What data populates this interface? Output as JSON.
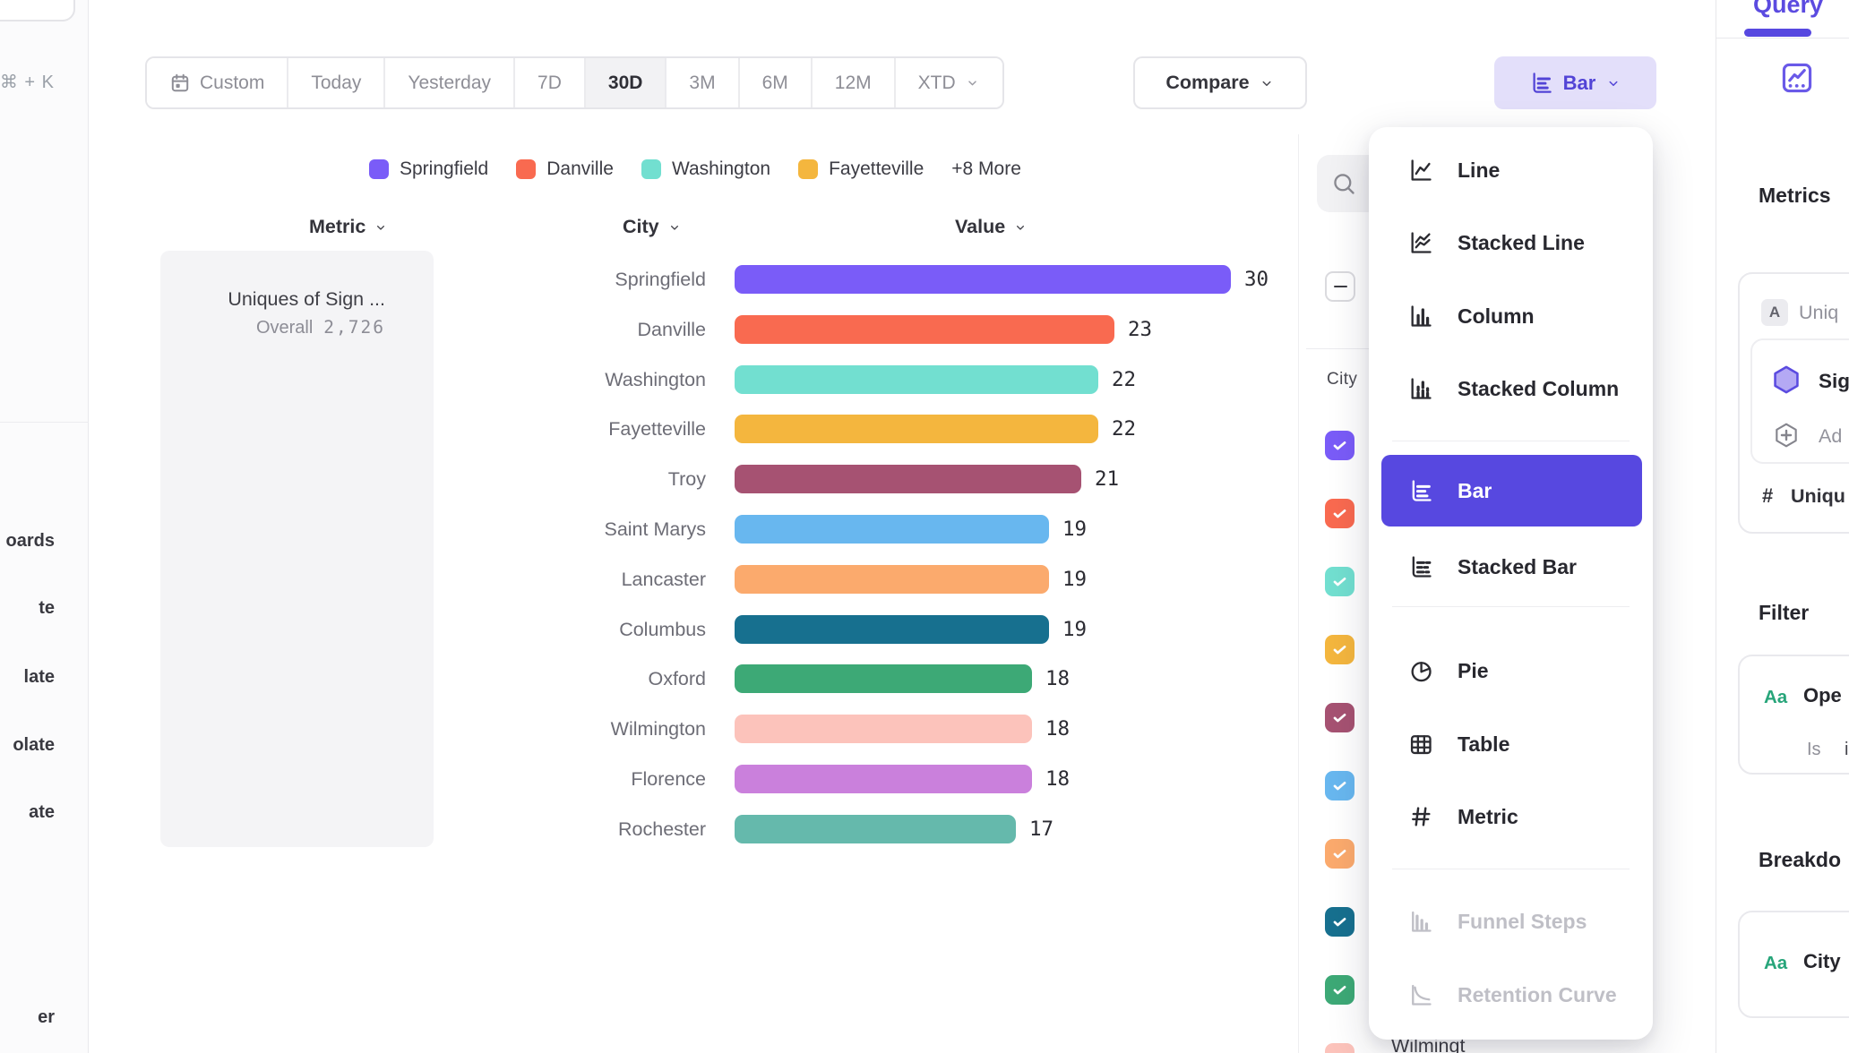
{
  "sidebar": {
    "shortcut": "⌘ + K",
    "items": [
      "oards",
      "te",
      "late",
      "olate",
      "ate",
      "er"
    ]
  },
  "toolbar": {
    "date_buttons": [
      {
        "label": "Custom",
        "icon": "calendar",
        "selected": false
      },
      {
        "label": "Today"
      },
      {
        "label": "Yesterday"
      },
      {
        "label": "7D"
      },
      {
        "label": "30D",
        "selected": true
      },
      {
        "label": "3M"
      },
      {
        "label": "6M"
      },
      {
        "label": "12M"
      },
      {
        "label": "XTD",
        "chevron": true
      }
    ],
    "compare": {
      "label": "Compare"
    },
    "chart_type": {
      "label": "Bar"
    }
  },
  "legend": {
    "items": [
      {
        "label": "Springfield",
        "color": "#7a5cf8"
      },
      {
        "label": "Danville",
        "color": "#f96a50"
      },
      {
        "label": "Washington",
        "color": "#72dfd0"
      },
      {
        "label": "Fayetteville",
        "color": "#f4b63e"
      }
    ],
    "more_label": "+8 More"
  },
  "chart": {
    "headers": [
      {
        "label": "Metric"
      },
      {
        "label": "City"
      },
      {
        "label": "Value"
      }
    ],
    "metric_card": {
      "title": "Uniques of Sign ...",
      "overall_label": "Overall",
      "overall_value": "2,726"
    }
  },
  "chart_data": {
    "type": "bar",
    "title": "Uniques of Sign ...",
    "overall_total": "2,726",
    "categories": [
      "Springfield",
      "Danville",
      "Washington",
      "Fayetteville",
      "Troy",
      "Saint Marys",
      "Lancaster",
      "Columbus",
      "Oxford",
      "Wilmington",
      "Florence",
      "Rochester"
    ],
    "values": [
      30,
      23,
      22,
      22,
      21,
      19,
      19,
      19,
      18,
      18,
      18,
      17
    ],
    "colors": [
      "#7a5cf8",
      "#f96a50",
      "#72dfd0",
      "#f4b63e",
      "#a65272",
      "#68b7ef",
      "#fbaa6d",
      "#17708f",
      "#3da976",
      "#fcc3bb",
      "#ca80dc",
      "#65b9ac"
    ],
    "xlabel": "Value",
    "ylabel": "City",
    "xlim": [
      0,
      30
    ]
  },
  "breakdown_list": {
    "column_label": "City",
    "partial_item": "Wilmingt",
    "checkbox_colors": [
      "#7a5cf8",
      "#f96a50",
      "#72dfd0",
      "#f4b63e",
      "#a65272",
      "#68b7ef",
      "#fbaa6d",
      "#17708f",
      "#3da976",
      "#fcc3bb"
    ]
  },
  "chart_menu": {
    "items": [
      {
        "label": "Line",
        "icon": "line"
      },
      {
        "label": "Stacked Line",
        "icon": "stacked-line"
      },
      {
        "label": "Column",
        "icon": "column"
      },
      {
        "label": "Stacked Column",
        "icon": "stacked-column"
      },
      {
        "label": "Bar",
        "icon": "bar",
        "selected": true
      },
      {
        "label": "Stacked Bar",
        "icon": "stacked-bar"
      },
      {
        "label": "Pie",
        "icon": "pie"
      },
      {
        "label": "Table",
        "icon": "table"
      },
      {
        "label": "Metric",
        "icon": "hash"
      },
      {
        "label": "Funnel Steps",
        "icon": "funnel",
        "disabled": true
      },
      {
        "label": "Retention Curve",
        "icon": "retention",
        "disabled": true
      }
    ]
  },
  "query_panel": {
    "tab": "Query",
    "metrics_heading": "Metrics",
    "metric_type_badge": "A",
    "metric_type_text": "Uniq",
    "event_label": "Sig",
    "add_label": "Ad",
    "count_prefix": "#",
    "count_label": "Uniqu",
    "filter_heading": "Filter",
    "filter_aa": "Aa",
    "filter_label": "Ope",
    "filter_operator": "Is",
    "filter_value": "i",
    "breakdown_heading": "Breakdo",
    "breakdown_aa": "Aa",
    "breakdown_label": "City"
  }
}
